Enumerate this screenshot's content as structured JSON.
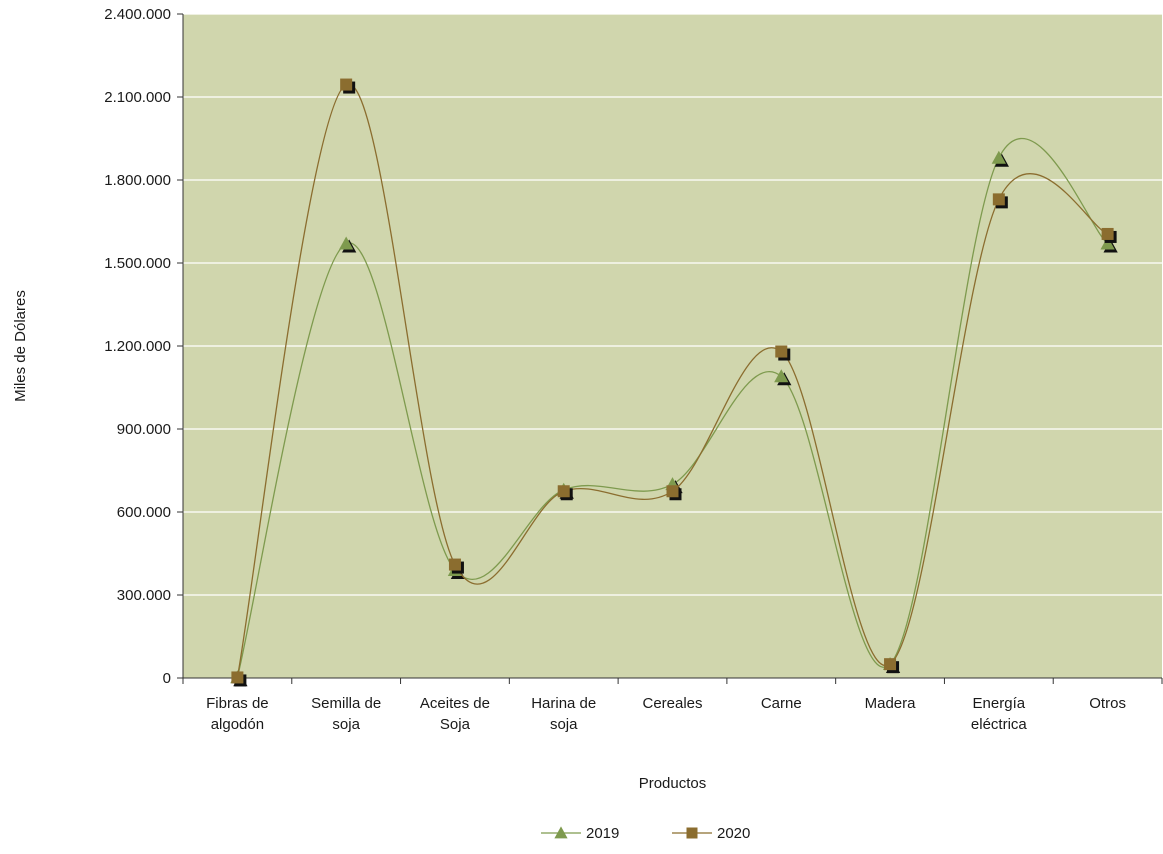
{
  "chart_data": {
    "type": "line",
    "title": "",
    "xlabel": "Productos",
    "ylabel": "Miles de Dólares",
    "ylim": [
      0,
      2400000
    ],
    "yticks": [
      0,
      300000,
      600000,
      900000,
      1200000,
      1500000,
      1800000,
      2100000,
      2400000
    ],
    "ytick_labels": [
      "0",
      "300.000",
      "600.000",
      "900.000",
      "1.200.000",
      "1.500.000",
      "1.800.000",
      "2.100.000",
      "2.400.000"
    ],
    "grid": true,
    "legend_position": "bottom",
    "categories": [
      [
        "Fibras de",
        "algodón"
      ],
      [
        "Semilla de",
        "soja"
      ],
      [
        "Aceites de",
        "Soja"
      ],
      [
        "Harina de",
        "soja"
      ],
      [
        "Cereales"
      ],
      [
        "Carne"
      ],
      [
        "Madera"
      ],
      [
        "Energía",
        "eléctrica"
      ],
      [
        "Otros"
      ]
    ],
    "series": [
      {
        "name": "2019",
        "marker": "triangle",
        "color": "#7e9a4e",
        "values": [
          2000,
          1570000,
          390000,
          680000,
          700000,
          1090000,
          50000,
          1880000,
          1570000
        ]
      },
      {
        "name": "2020",
        "marker": "square",
        "color": "#8b6d2f",
        "values": [
          2000,
          2145000,
          410000,
          675000,
          675000,
          1180000,
          50000,
          1730000,
          1605000
        ]
      }
    ]
  },
  "colors": {
    "plot_background": "#d0d6ad",
    "gridline": "#ffffff",
    "axis": "#333333",
    "marker_shadow": "#111111"
  }
}
